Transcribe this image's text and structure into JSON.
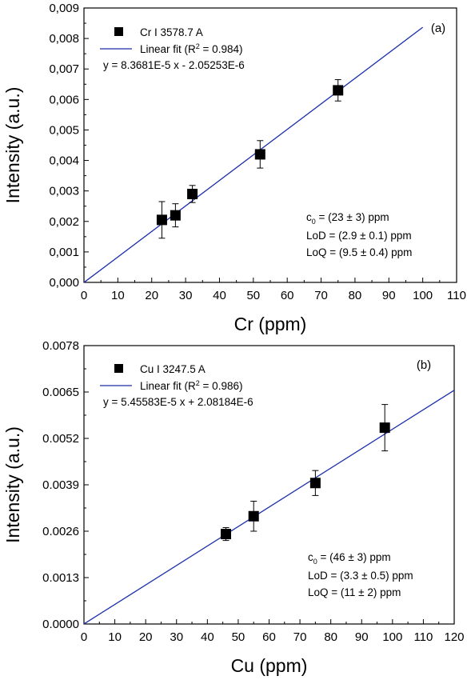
{
  "chart_data": [
    {
      "type": "scatter",
      "panel_label": "(a)",
      "xlabel": "Cr (ppm)",
      "ylabel": "Intensity (a.u.)",
      "xlim": [
        0,
        110
      ],
      "ylim": [
        0,
        0.009
      ],
      "x_ticks": [
        "0",
        "10",
        "20",
        "30",
        "40",
        "50",
        "60",
        "70",
        "80",
        "90",
        "100",
        "110"
      ],
      "y_ticks": [
        "0,000",
        "0,001",
        "0,002",
        "0,003",
        "0,004",
        "0,005",
        "0,006",
        "0,007",
        "0,008",
        "0,009"
      ],
      "series": [
        {
          "name": "Cr I 3578.7 A",
          "marker": "square",
          "color": "#000000",
          "x": [
            23,
            27,
            32,
            52,
            75
          ],
          "y": [
            0.00205,
            0.0022,
            0.0029,
            0.0042,
            0.0063
          ],
          "error": [
            0.0006,
            0.00038,
            0.00028,
            0.00045,
            0.00035
          ]
        }
      ],
      "fit": {
        "legend_prefix": "Linear fit (R",
        "legend_suffix": " = 0.984)",
        "superscript": "2",
        "equation": "y = 8.3681E-5 x - 2.05253E-6",
        "slope": 8.3681e-05,
        "intercept": -2.05253e-06,
        "x_range": [
          0,
          100
        ],
        "color": "#1a2eaa"
      },
      "annotations": {
        "c0_prefix": "c",
        "c0_sub": "0",
        "c0_value": " = (23 ± 3) ppm",
        "lod": "LoD = (2.9 ± 0.1) ppm",
        "loq": "LoQ = (9.5 ± 0.4) ppm"
      },
      "grid": false,
      "legend_position": "top-left"
    },
    {
      "type": "scatter",
      "panel_label": "(b)",
      "xlabel": "Cu (ppm)",
      "ylabel": "Intensity (a.u.)",
      "xlim": [
        0,
        120
      ],
      "ylim": [
        0,
        0.0078
      ],
      "x_ticks": [
        "0",
        "10",
        "20",
        "30",
        "40",
        "50",
        "60",
        "70",
        "80",
        "90",
        "100",
        "110",
        "120"
      ],
      "y_ticks": [
        "0.0000",
        "0.0013",
        "0.0026",
        "0.0039",
        "0.0052",
        "0.0065",
        "0.0078"
      ],
      "series": [
        {
          "name": "Cu I 3247.5 A",
          "marker": "square",
          "color": "#000000",
          "x": [
            46,
            55,
            75,
            97.5
          ],
          "y": [
            0.00252,
            0.00302,
            0.00395,
            0.0055
          ],
          "error": [
            0.00018,
            0.00042,
            0.00035,
            0.00065
          ]
        }
      ],
      "fit": {
        "legend_prefix": "Linear fit (R",
        "legend_suffix": " = 0.986)",
        "superscript": "2",
        "equation": "y = 5.45583E-5 x + 2.08184E-6",
        "slope": 5.45583e-05,
        "intercept": 2.08184e-06,
        "x_range": [
          0,
          120
        ],
        "color": "#1a2eaa"
      },
      "annotations": {
        "c0_prefix": "c",
        "c0_sub": "0",
        "c0_value": " = (46 ± 3) ppm",
        "lod": "LoD = (3.3 ± 0.5) ppm",
        "loq": "LoQ = (11 ± 2) ppm"
      },
      "grid": false,
      "legend_position": "top-left"
    }
  ]
}
